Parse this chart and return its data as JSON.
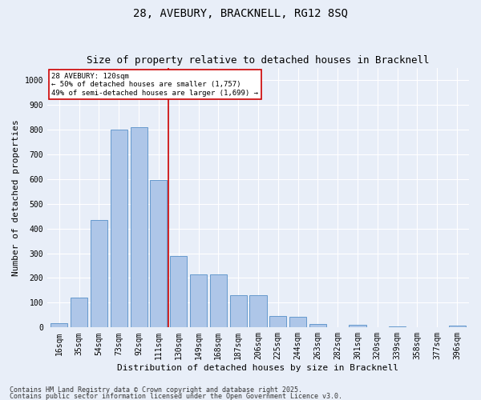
{
  "title": "28, AVEBURY, BRACKNELL, RG12 8SQ",
  "subtitle": "Size of property relative to detached houses in Bracknell",
  "xlabel": "Distribution of detached houses by size in Bracknell",
  "ylabel": "Number of detached properties",
  "categories": [
    "16sqm",
    "35sqm",
    "54sqm",
    "73sqm",
    "92sqm",
    "111sqm",
    "130sqm",
    "149sqm",
    "168sqm",
    "187sqm",
    "206sqm",
    "225sqm",
    "244sqm",
    "263sqm",
    "282sqm",
    "301sqm",
    "320sqm",
    "339sqm",
    "358sqm",
    "377sqm",
    "396sqm"
  ],
  "values": [
    18,
    120,
    435,
    800,
    810,
    595,
    290,
    215,
    215,
    130,
    130,
    45,
    43,
    13,
    0,
    10,
    0,
    5,
    0,
    0,
    8
  ],
  "bar_color": "#aec6e8",
  "bar_edge_color": "#5590c8",
  "annotation_text": "28 AVEBURY: 120sqm\n← 50% of detached houses are smaller (1,757)\n49% of semi-detached houses are larger (1,699) →",
  "annotation_box_color": "#ffffff",
  "annotation_box_edge": "#cc0000",
  "vline_color": "#cc0000",
  "vline_x_index": 5,
  "ylim": [
    0,
    1050
  ],
  "yticks": [
    0,
    100,
    200,
    300,
    400,
    500,
    600,
    700,
    800,
    900,
    1000
  ],
  "background_color": "#e8eef8",
  "grid_color": "#ffffff",
  "footer_line1": "Contains HM Land Registry data © Crown copyright and database right 2025.",
  "footer_line2": "Contains public sector information licensed under the Open Government Licence v3.0.",
  "title_fontsize": 10,
  "subtitle_fontsize": 9,
  "axis_label_fontsize": 8,
  "tick_fontsize": 7,
  "footer_fontsize": 6
}
